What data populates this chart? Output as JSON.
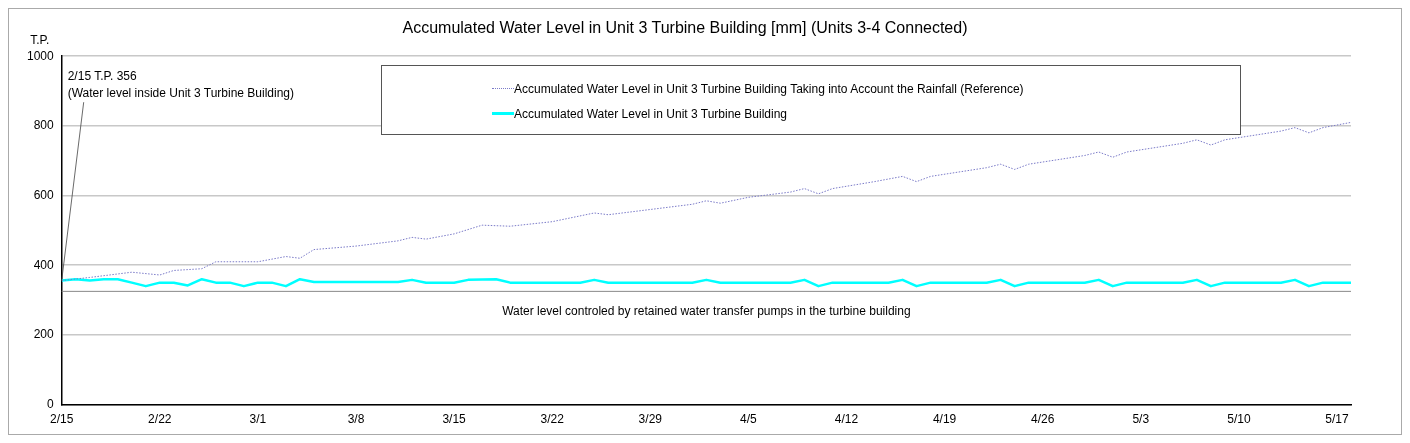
{
  "chart_data": {
    "type": "line",
    "title": "Accumulated Water Level in Unit 3 Turbine Building [mm] (Units 3-4 Connected)",
    "ylabel": "T.P.",
    "xlim": [
      "--02-15",
      "--05-18"
    ],
    "xticks": [
      {
        "value": "--02-15",
        "label": "2/15"
      },
      {
        "value": "--02-22",
        "label": "2/22"
      },
      {
        "value": "--03-01",
        "label": "3/1"
      },
      {
        "value": "--03-08",
        "label": "3/8"
      },
      {
        "value": "--03-15",
        "label": "3/15"
      },
      {
        "value": "--03-22",
        "label": "3/22"
      },
      {
        "value": "--03-29",
        "label": "3/29"
      },
      {
        "value": "--04-05",
        "label": "4/5"
      },
      {
        "value": "--04-12",
        "label": "4/12"
      },
      {
        "value": "--04-19",
        "label": "4/19"
      },
      {
        "value": "--04-26",
        "label": "4/26"
      },
      {
        "value": "--05-03",
        "label": "5/3"
      },
      {
        "value": "--05-10",
        "label": "5/10"
      },
      {
        "value": "--05-17",
        "label": "5/17"
      }
    ],
    "ylim": [
      0,
      1000
    ],
    "yticks": [
      0,
      200,
      400,
      600,
      800,
      1000
    ],
    "grid": "y",
    "legend": "top",
    "marker": "none",
    "series": [
      {
        "name": "Accumulated Water Level in Unit 3 Turbine Building Taking into Account the Rainfall (Reference)",
        "color": "#7b7bc8",
        "line_style": "dotted",
        "x": [
          "--02-15",
          "--02-17",
          "--02-20",
          "--02-22",
          "--02-23",
          "--02-25",
          "--02-26",
          "--02-28",
          "--03-01",
          "--03-03",
          "--03-04",
          "--03-05",
          "--03-08",
          "--03-11",
          "--03-12",
          "--03-13",
          "--03-15",
          "--03-17",
          "--03-19",
          "--03-22",
          "--03-25",
          "--03-26",
          "--03-29",
          "--04-01",
          "--04-02",
          "--04-03",
          "--04-05",
          "--04-08",
          "--04-09",
          "--04-10",
          "--04-11",
          "--04-14",
          "--04-16",
          "--04-17",
          "--04-18",
          "--04-22",
          "--04-23",
          "--04-24",
          "--04-25",
          "--04-29",
          "--04-30",
          "--05-01",
          "--05-02",
          "--05-06",
          "--05-07",
          "--05-08",
          "--05-09",
          "--05-13",
          "--05-14",
          "--05-15",
          "--05-16",
          "--05-18"
        ],
        "values": [
          356,
          365,
          380,
          372,
          385,
          390,
          410,
          410,
          410,
          425,
          420,
          445,
          455,
          470,
          480,
          475,
          490,
          515,
          512,
          525,
          550,
          545,
          560,
          575,
          585,
          578,
          595,
          610,
          620,
          605,
          620,
          640,
          655,
          640,
          655,
          680,
          690,
          675,
          690,
          715,
          725,
          710,
          725,
          750,
          760,
          745,
          760,
          785,
          795,
          780,
          795,
          810
        ]
      },
      {
        "name": "Accumulated Water Level in Unit 3 Turbine Building",
        "color": "#00ffff",
        "line_style": "solid",
        "x": [
          "--02-15",
          "--02-16",
          "--02-17",
          "--02-18",
          "--02-19",
          "--02-20",
          "--02-21",
          "--02-22",
          "--02-23",
          "--02-24",
          "--02-25",
          "--02-26",
          "--02-27",
          "--02-28",
          "--03-01",
          "--03-02",
          "--03-03",
          "--03-04",
          "--03-05",
          "--03-11",
          "--03-12",
          "--03-13",
          "--03-15",
          "--03-16",
          "--03-18",
          "--03-19",
          "--03-24",
          "--03-25",
          "--03-26",
          "--04-01",
          "--04-02",
          "--04-03",
          "--04-08",
          "--04-09",
          "--04-10",
          "--04-11",
          "--04-15",
          "--04-16",
          "--04-17",
          "--04-18",
          "--04-22",
          "--04-23",
          "--04-24",
          "--04-25",
          "--04-29",
          "--04-30",
          "--05-01",
          "--05-02",
          "--05-06",
          "--05-07",
          "--05-08",
          "--05-09",
          "--05-13",
          "--05-14",
          "--05-15",
          "--05-16",
          "--05-18"
        ],
        "values": [
          356,
          360,
          356,
          360,
          360,
          350,
          340,
          350,
          350,
          342,
          360,
          350,
          350,
          340,
          350,
          350,
          340,
          360,
          352,
          352,
          358,
          350,
          350,
          358,
          360,
          350,
          350,
          358,
          350,
          350,
          358,
          350,
          350,
          358,
          340,
          350,
          350,
          358,
          340,
          350,
          350,
          358,
          340,
          350,
          350,
          358,
          340,
          350,
          350,
          358,
          340,
          350,
          350,
          358,
          340,
          350,
          350
        ]
      }
    ],
    "annotations": [
      {
        "text": "2/15 T.P. 356\n(Water level inside Unit 3 Turbine Building)",
        "x": "--02-15",
        "y": 356
      }
    ],
    "ref_lines": [
      {
        "axis": "y",
        "value": 325,
        "label": "Water level controled by retained water transfer pumps in the turbine building",
        "color": "#888888"
      }
    ]
  }
}
